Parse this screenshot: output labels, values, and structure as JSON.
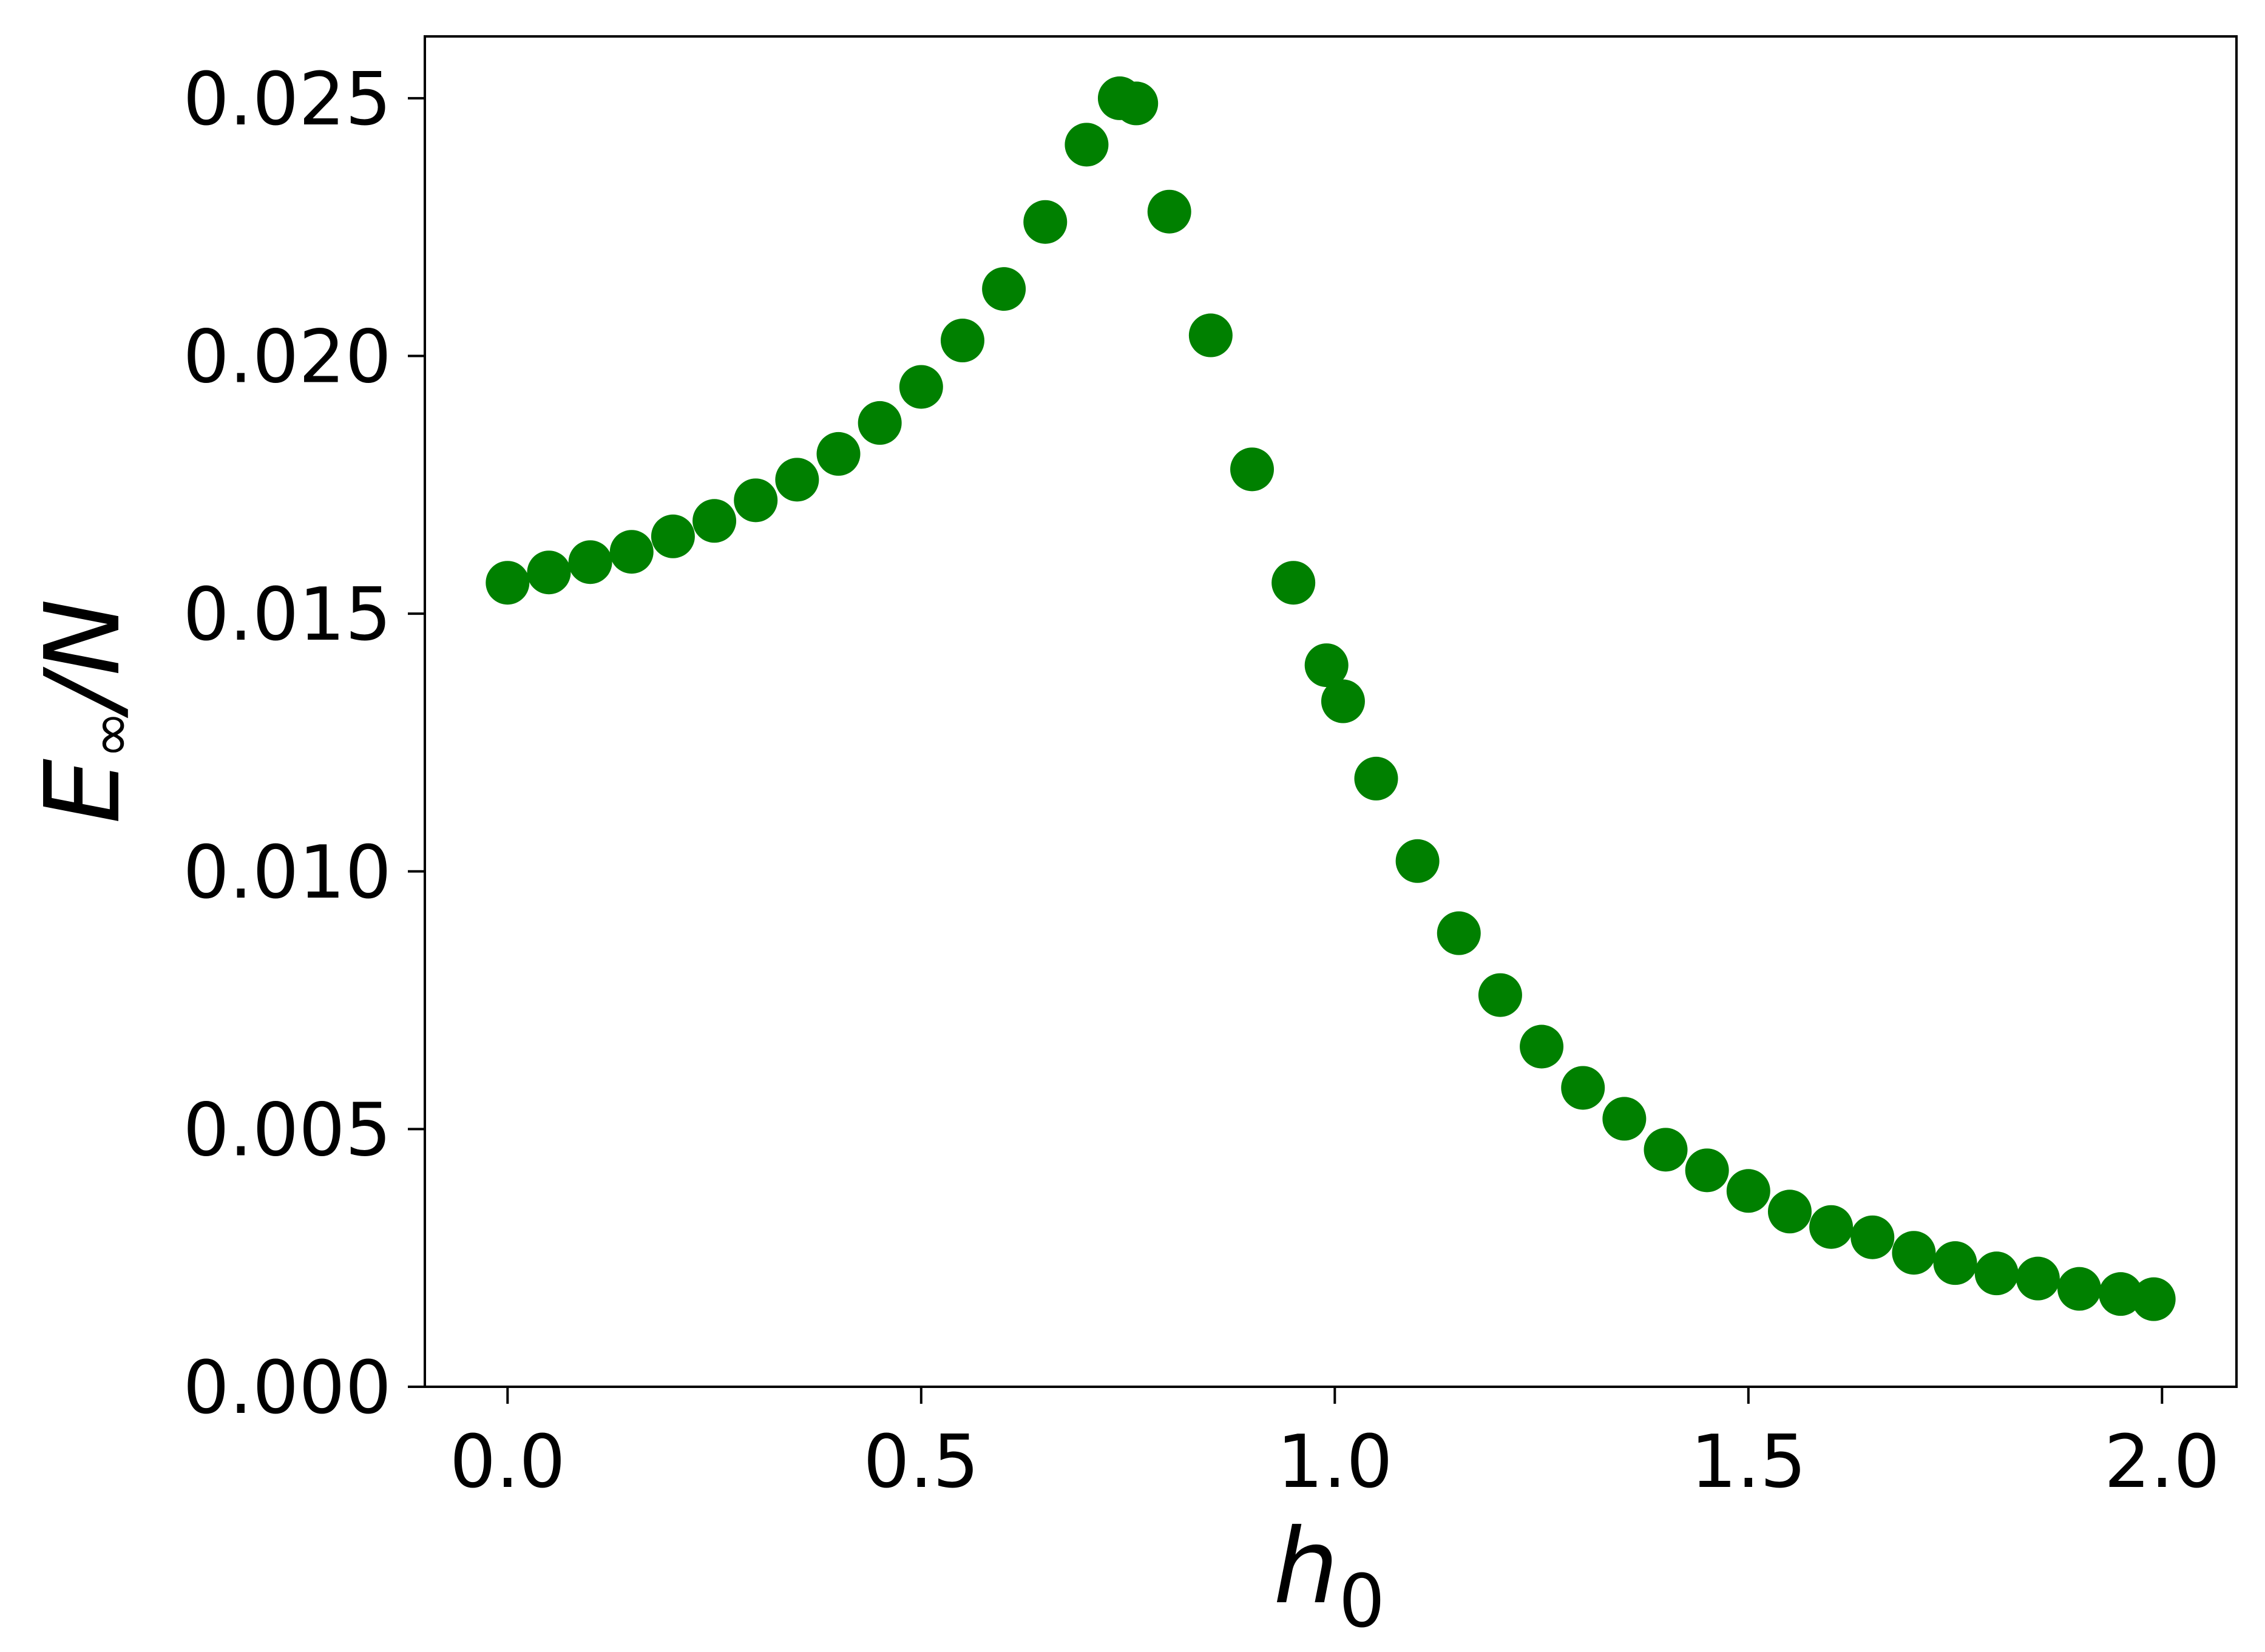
{
  "chart_data": {
    "type": "scatter",
    "title": "",
    "xlabel": {
      "base": "h",
      "sub": "0"
    },
    "ylabel": {
      "base": "E",
      "sub": "∞",
      "suffix": "/N"
    },
    "xlim": [
      -0.1,
      2.09
    ],
    "ylim": [
      0.0,
      0.0262
    ],
    "xticks": [
      0.0,
      0.5,
      1.0,
      1.5,
      2.0
    ],
    "xtick_labels": [
      "0.0",
      "0.5",
      "1.0",
      "1.5",
      "2.0"
    ],
    "yticks": [
      0.0,
      0.005,
      0.01,
      0.015,
      0.02,
      0.025
    ],
    "ytick_labels": [
      "0.000",
      "0.005",
      "0.010",
      "0.015",
      "0.020",
      "0.025"
    ],
    "grid": false,
    "legend": "none",
    "marker_color": "#008000",
    "series": [
      {
        "x": [
          0.0,
          0.05,
          0.1,
          0.15,
          0.2,
          0.25,
          0.3,
          0.35,
          0.4,
          0.45,
          0.5,
          0.55,
          0.6,
          0.65,
          0.7,
          0.74,
          0.76,
          0.8,
          0.85,
          0.9,
          0.95,
          0.99,
          1.01,
          1.05,
          1.1,
          1.15,
          1.2,
          1.25,
          1.3,
          1.35,
          1.4,
          1.45,
          1.5,
          1.55,
          1.6,
          1.65,
          1.7,
          1.75,
          1.8,
          1.85,
          1.9,
          1.95,
          1.99
        ],
        "y": [
          0.0156,
          0.0158,
          0.016,
          0.0162,
          0.0165,
          0.0168,
          0.0172,
          0.0176,
          0.0181,
          0.0187,
          0.0194,
          0.0203,
          0.0213,
          0.0226,
          0.0241,
          0.025,
          0.0249,
          0.0228,
          0.0204,
          0.0178,
          0.0156,
          0.014,
          0.0133,
          0.0118,
          0.0102,
          0.0088,
          0.0076,
          0.0066,
          0.0058,
          0.0052,
          0.0046,
          0.0042,
          0.0038,
          0.0034,
          0.0031,
          0.0029,
          0.0026,
          0.0024,
          0.0022,
          0.0021,
          0.0019,
          0.0018,
          0.0017
        ]
      }
    ]
  }
}
